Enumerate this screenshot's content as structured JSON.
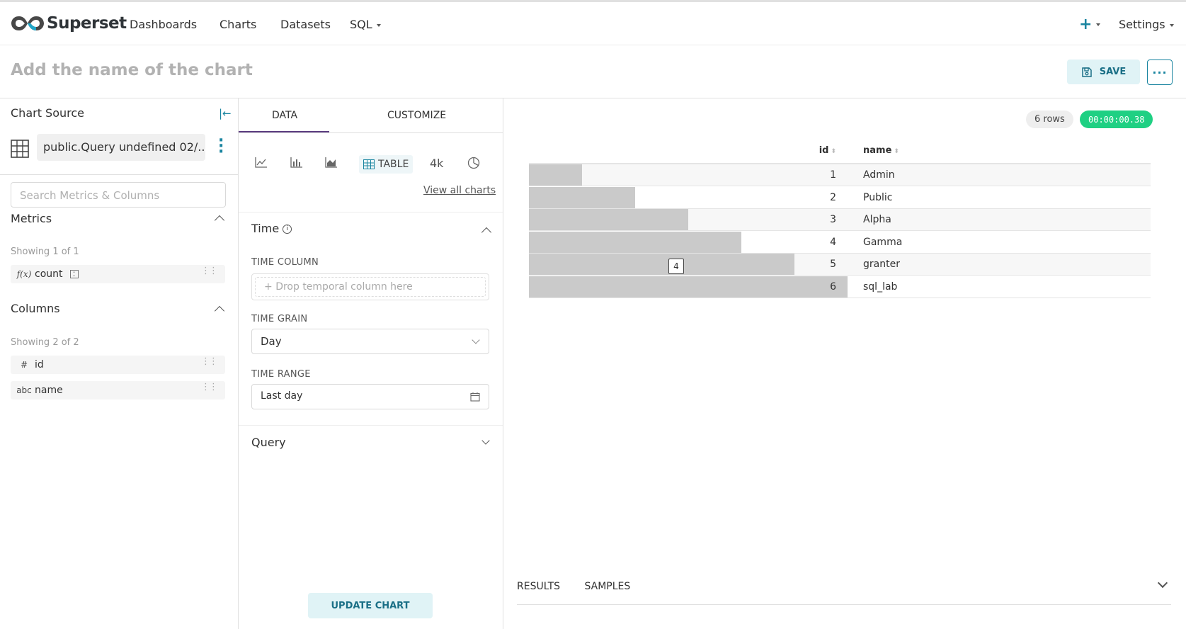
{
  "brand": {
    "name": "Superset"
  },
  "nav": {
    "items": [
      "Dashboards",
      "Charts",
      "Datasets",
      "SQL"
    ],
    "plus": "+",
    "settings": "Settings"
  },
  "header": {
    "title_placeholder": "Add the name of the chart",
    "save_label": "SAVE",
    "more_label": "···"
  },
  "datasource": {
    "section_title": "Chart Source",
    "name": "public.Query undefined 02/...",
    "search_placeholder": "Search Metrics & Columns",
    "metrics": {
      "title": "Metrics",
      "showing": "Showing 1 of 1",
      "items": [
        {
          "type": "f(x)",
          "label": "count"
        }
      ]
    },
    "columns": {
      "title": "Columns",
      "showing": "Showing 2 of 2",
      "items": [
        {
          "type": "#",
          "label": "id"
        },
        {
          "type": "abc",
          "label": "name"
        }
      ]
    }
  },
  "controls": {
    "tabs": [
      "DATA",
      "CUSTOMIZE"
    ],
    "active_tab": "DATA",
    "viz_table_label": "TABLE",
    "viz_bignumber_label": "4k",
    "view_all": "View all charts",
    "time_section": "Time",
    "time_column_label": "TIME COLUMN",
    "time_column_placeholder": "Drop temporal column here",
    "time_grain_label": "TIME GRAIN",
    "time_grain_value": "Day",
    "time_range_label": "TIME RANGE",
    "time_range_value": "Last day",
    "query_section": "Query",
    "update_label": "UPDATE CHART"
  },
  "results": {
    "rows_badge": "6 rows",
    "timer": "00:00:00.38",
    "columns": [
      "id",
      "name"
    ],
    "bar_max": 6,
    "rows": [
      {
        "id": "1",
        "name": "Admin"
      },
      {
        "id": "2",
        "name": "Public"
      },
      {
        "id": "3",
        "name": "Alpha"
      },
      {
        "id": "4",
        "name": "Gamma"
      },
      {
        "id": "5",
        "name": "granter"
      },
      {
        "id": "6",
        "name": "sql_lab"
      }
    ],
    "tooltip": "4",
    "bottom_tabs": [
      "RESULTS",
      "SAMPLES"
    ]
  },
  "colors": {
    "accent": "#1a85a0",
    "tab_underline": "#5b3c80",
    "timer_bg": "#1fd083"
  }
}
